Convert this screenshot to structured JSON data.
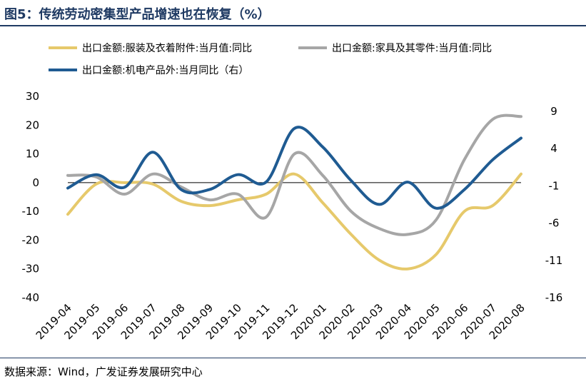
{
  "title": "图5：传统劳动密集型产品增速也在恢复（%）",
  "source": "数据来源：Wind，广发证券发展研究中心",
  "chart_data": {
    "type": "line",
    "categories": [
      "2019-04",
      "2019-05",
      "2019-06",
      "2019-07",
      "2019-08",
      "2019-09",
      "2019-10",
      "2019-11",
      "2019-12",
      "2020-01",
      "2020-02",
      "2020-03",
      "2020-04",
      "2020-05",
      "2020-06",
      "2020-07",
      "2020-08"
    ],
    "y_left": {
      "ylim": [
        -40,
        30
      ],
      "ticks": [
        "30",
        "20",
        "10",
        "0",
        "-10",
        "-20",
        "-30",
        "-40"
      ],
      "tick_values": [
        30,
        20,
        10,
        0,
        -10,
        -20,
        -30,
        -40
      ]
    },
    "y_right": {
      "ylim": [
        -16,
        11
      ],
      "ticks": [
        "9",
        "4",
        "-1",
        "-6",
        "-11",
        "-16"
      ],
      "tick_values": [
        9,
        4,
        -1,
        -6,
        -11,
        -16
      ]
    },
    "legend_position": "top-left",
    "series": [
      {
        "name": "出口金额:服装及衣着附件:当月值:同比",
        "axis": "left",
        "color": "#e6c96b",
        "values": [
          -11,
          -0.5,
          0,
          -0.5,
          -6.5,
          -8,
          -6,
          -4,
          3,
          -7,
          -18,
          -27,
          -30,
          -25,
          -10,
          -8,
          3
        ]
      },
      {
        "name": "出口金额:家具及其零件:当月值:同比",
        "axis": "left",
        "color": "#a6a6a6",
        "values": [
          2.5,
          2,
          -4,
          3,
          -1.5,
          -6,
          -4,
          -12,
          10,
          2.5,
          -10,
          -16,
          -18,
          -13,
          8,
          22,
          23
        ]
      },
      {
        "name": "出口金额:机电产品外:当月同比（右）",
        "axis": "right",
        "color": "#1f5b92",
        "values": [
          -1.3,
          0.5,
          -1.2,
          3.5,
          -1.5,
          -1.5,
          0.5,
          -0.5,
          6.7,
          4.2,
          -0.3,
          -3.5,
          -0.5,
          -4,
          -1.5,
          2.5,
          5.4
        ]
      }
    ]
  }
}
